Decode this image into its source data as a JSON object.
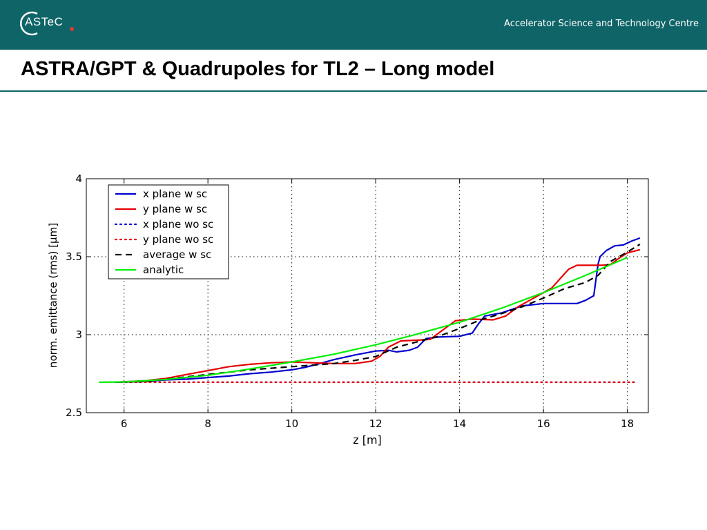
{
  "header": {
    "logo_text": "ASTeC",
    "org_name": "Accelerator Science and Technology Centre"
  },
  "slide": {
    "title": "ASTRA/GPT & Quadrupoles for TL2 – Long model"
  },
  "colors": {
    "header_bg": "#0f6467",
    "x_plane": "#0000cc",
    "y_plane": "#e60000",
    "average": "#000000",
    "analytic": "#00ee00"
  },
  "chart_data": {
    "type": "line",
    "title": "",
    "xlabel": "z [m]",
    "ylabel": "norm. emittance (rms) [µm]",
    "xlim": [
      5.1,
      18.5
    ],
    "ylim": [
      2.5,
      4
    ],
    "xticks": [
      6,
      8,
      10,
      12,
      14,
      16,
      18
    ],
    "yticks": [
      2.5,
      3,
      3.5,
      4
    ],
    "grid": true,
    "legend_position": "top-left",
    "series": [
      {
        "name": "x plane w sc",
        "color": "#0000cc",
        "style": "solid",
        "x": [
          5.8,
          6.5,
          7.0,
          7.5,
          8.0,
          8.5,
          9.0,
          9.5,
          10.0,
          10.3,
          10.6,
          11.0,
          11.5,
          12.0,
          12.3,
          12.5,
          12.8,
          13.0,
          13.2,
          13.5,
          14.0,
          14.3,
          14.45,
          14.6,
          15.0,
          15.5,
          16.0,
          16.5,
          16.8,
          17.0,
          17.2,
          17.3,
          17.35,
          17.5,
          17.7,
          17.9,
          18.1,
          18.3
        ],
        "y": [
          2.695,
          2.7,
          2.71,
          2.715,
          2.725,
          2.735,
          2.75,
          2.76,
          2.775,
          2.79,
          2.81,
          2.84,
          2.87,
          2.895,
          2.9,
          2.89,
          2.9,
          2.92,
          2.975,
          2.985,
          2.99,
          3.01,
          3.07,
          3.12,
          3.14,
          3.185,
          3.2,
          3.2,
          3.2,
          3.22,
          3.25,
          3.45,
          3.5,
          3.54,
          3.57,
          3.575,
          3.6,
          3.62
        ]
      },
      {
        "name": "y plane w sc",
        "color": "#e60000",
        "style": "solid",
        "x": [
          5.8,
          6.5,
          7.0,
          7.5,
          8.0,
          8.5,
          9.0,
          9.5,
          10.0,
          10.5,
          11.0,
          11.5,
          11.9,
          12.1,
          12.3,
          12.6,
          13.0,
          13.3,
          13.6,
          13.9,
          14.3,
          14.8,
          15.1,
          15.4,
          15.8,
          16.2,
          16.4,
          16.6,
          16.8,
          17.0,
          17.2,
          17.4,
          17.6,
          17.8,
          18.0,
          18.3
        ],
        "y": [
          2.695,
          2.705,
          2.72,
          2.745,
          2.77,
          2.795,
          2.81,
          2.82,
          2.825,
          2.82,
          2.815,
          2.815,
          2.83,
          2.86,
          2.92,
          2.96,
          2.965,
          2.97,
          3.03,
          3.09,
          3.1,
          3.095,
          3.12,
          3.18,
          3.24,
          3.3,
          3.36,
          3.42,
          3.445,
          3.445,
          3.445,
          3.445,
          3.45,
          3.49,
          3.525,
          3.545
        ]
      },
      {
        "name": "x plane wo sc",
        "color": "#0000cc",
        "style": "dotted",
        "x": [
          5.8,
          18.2
        ],
        "y": [
          2.695,
          2.695
        ]
      },
      {
        "name": "y plane wo sc",
        "color": "#e60000",
        "style": "dotted",
        "x": [
          5.8,
          18.2
        ],
        "y": [
          2.695,
          2.695
        ]
      },
      {
        "name": "average w sc",
        "color": "#000000",
        "style": "dashed",
        "x": [
          5.8,
          6.5,
          7.0,
          8.0,
          9.0,
          10.0,
          10.5,
          11.0,
          11.5,
          12.0,
          12.5,
          13.0,
          13.5,
          14.0,
          14.5,
          15.0,
          15.5,
          16.0,
          16.5,
          17.0,
          17.3,
          17.6,
          18.0,
          18.3
        ],
        "y": [
          2.695,
          2.7,
          2.715,
          2.745,
          2.775,
          2.795,
          2.805,
          2.815,
          2.835,
          2.86,
          2.92,
          2.955,
          2.99,
          3.04,
          3.095,
          3.135,
          3.18,
          3.235,
          3.295,
          3.335,
          3.38,
          3.47,
          3.53,
          3.58
        ]
      },
      {
        "name": "analytic",
        "color": "#00ee00",
        "style": "solid",
        "x": [
          5.4,
          6.0,
          7.0,
          8.0,
          9.0,
          10.0,
          11.0,
          12.0,
          13.0,
          14.0,
          15.0,
          16.0,
          17.0,
          18.0
        ],
        "y": [
          2.695,
          2.697,
          2.713,
          2.74,
          2.78,
          2.825,
          2.875,
          2.935,
          3.005,
          3.08,
          3.17,
          3.27,
          3.38,
          3.495
        ]
      }
    ]
  }
}
